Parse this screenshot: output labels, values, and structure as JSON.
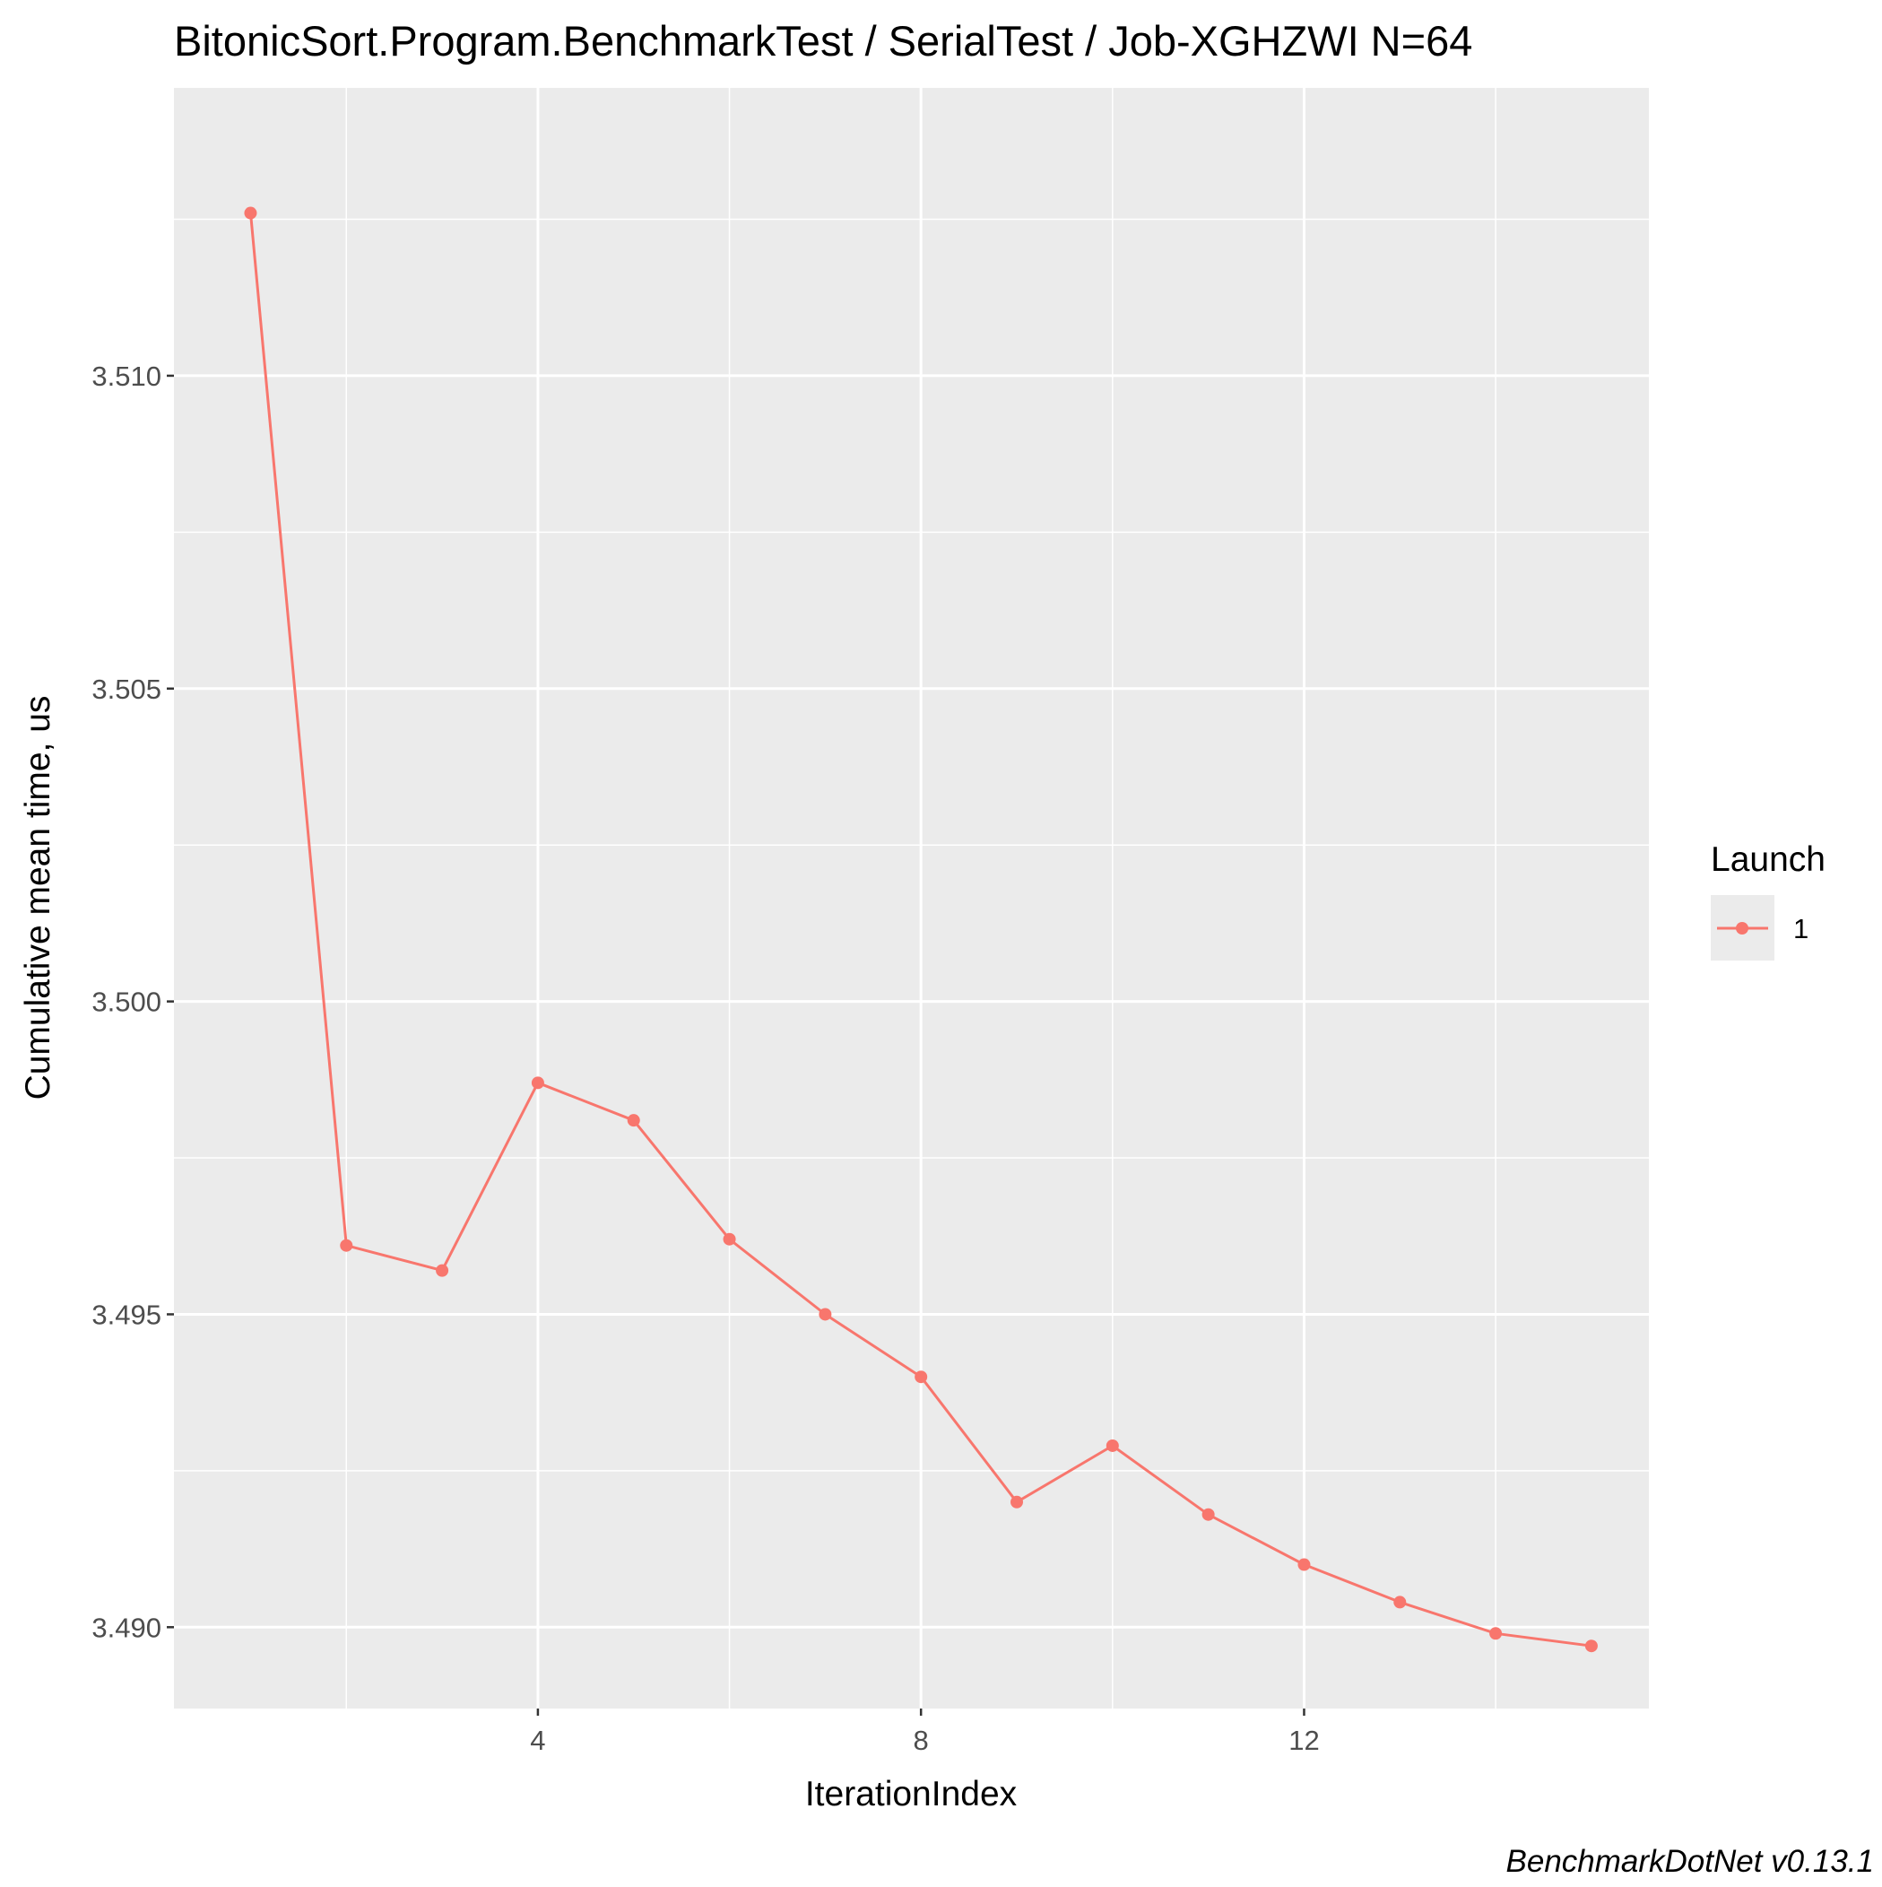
{
  "chart_data": {
    "type": "line",
    "title": "BitonicSort.Program.BenchmarkTest / SerialTest / Job-XGHZWI N=64",
    "xlabel": "IterationIndex",
    "ylabel": "Cumulative mean time, us",
    "caption": "BenchmarkDotNet v0.13.1",
    "xlim": [
      0.2,
      15.6
    ],
    "ylim": [
      3.4887,
      3.5146
    ],
    "xticks": [
      4,
      8,
      12
    ],
    "xtick_labels": [
      "4",
      "8",
      "12"
    ],
    "yticks": [
      3.49,
      3.495,
      3.5,
      3.505,
      3.51
    ],
    "ytick_labels": [
      "3.490",
      "3.495",
      "3.500",
      "3.505",
      "3.510"
    ],
    "grid": true,
    "legend": {
      "title": "Launch",
      "position": "right"
    },
    "colors": {
      "series": "#f8766d",
      "panel": "#ebebeb",
      "grid": "#ffffff"
    },
    "series": [
      {
        "name": "1",
        "x": [
          1,
          2,
          3,
          4,
          5,
          6,
          7,
          8,
          9,
          10,
          11,
          12,
          13,
          14,
          15
        ],
        "y": [
          3.5126,
          3.4961,
          3.4957,
          3.4987,
          3.4981,
          3.4962,
          3.495,
          3.494,
          3.492,
          3.4929,
          3.4918,
          3.491,
          3.4904,
          3.4899,
          3.4897
        ]
      }
    ]
  }
}
